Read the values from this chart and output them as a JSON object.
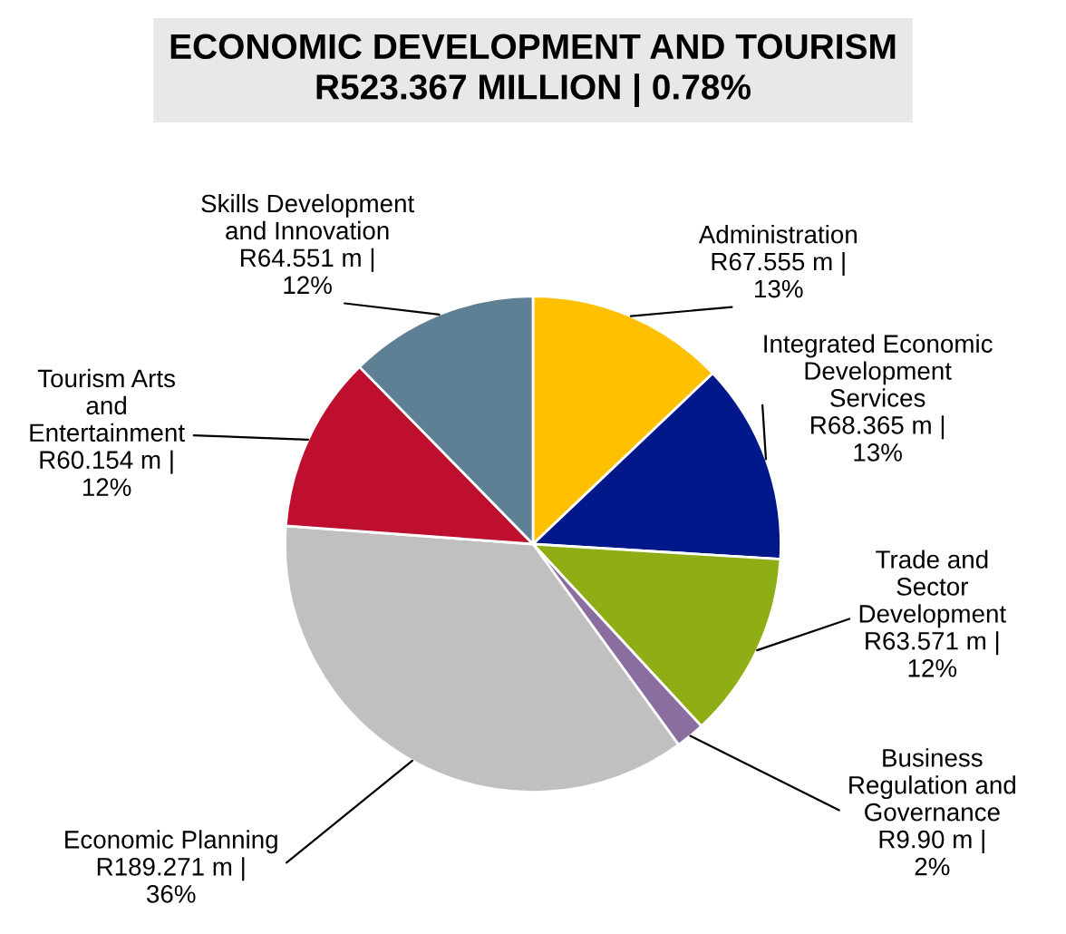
{
  "chart_data": {
    "type": "pie",
    "title": "ECONOMIC DEVELOPMENT AND TOURISM\nR523.367 MILLION | 0.78%",
    "categories": [
      "Administration",
      "Integrated Economic\nDevelopment\nServices",
      "Trade and\nSector\nDevelopment",
      "Business\nRegulation and\nGovernance",
      "Economic Planning",
      "Tourism Arts\nand\nEntertainment",
      "Skills Development\nand Innovation"
    ],
    "values": [
      67.555,
      68.365,
      63.571,
      9.9,
      189.271,
      60.154,
      64.551
    ],
    "value_labels": [
      "R67.555 m |\n13%",
      "R68.365 m |\n13%",
      "R63.571 m |\n12%",
      "R9.90 m |\n2%",
      "R189.271 m |\n36%",
      "R60.154 m |\n12%",
      "R64.551 m |\n12%"
    ],
    "colors": [
      "#ffc000",
      "#00188a",
      "#8fad15",
      "#8b6ea0",
      "#c0c0c0",
      "#be0f2e",
      "#5f7f94"
    ],
    "legend": false
  }
}
